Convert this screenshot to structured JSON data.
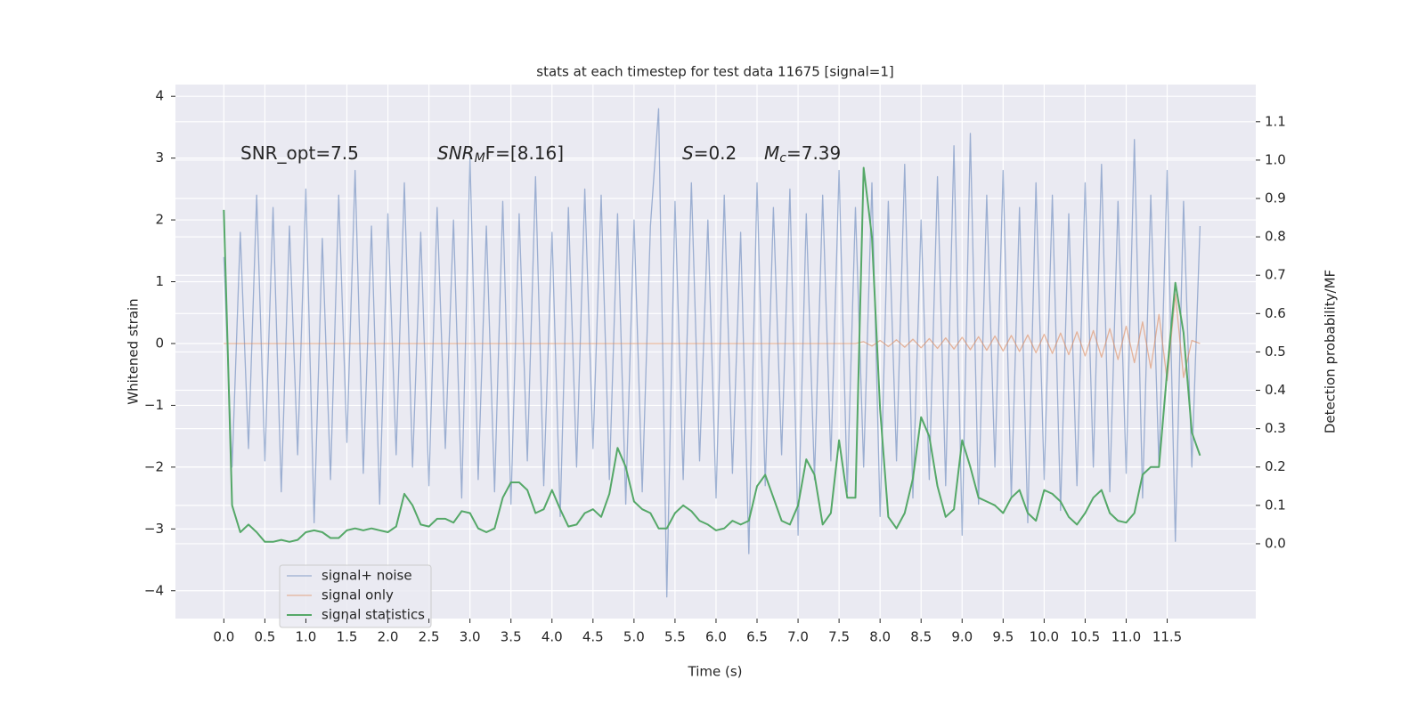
{
  "chart_data": {
    "type": "line",
    "title": "stats at each timestep for test data 11675 [signal=1]",
    "xlabel": "Time (s)",
    "ylabel": "Whitened strain",
    "y2label": "Detection probability/MF",
    "annotations": [
      {
        "text": "SNR_opt=7.5"
      },
      {
        "italic": "SNR",
        "sub": "M",
        "tail": "F=[8.16]"
      },
      {
        "italic": "S",
        "tail": "=0.2"
      },
      {
        "italic": "M",
        "sub": "c",
        "tail": "=7.39"
      }
    ],
    "grid": true,
    "legend": "lower left",
    "xlim": [
      -0.59,
      12.58
    ],
    "ylim": [
      -4.45,
      4.19
    ],
    "y2lim": [
      -0.195,
      1.197
    ],
    "xticks": [
      {
        "value": 0,
        "label": "0.0"
      },
      0.5,
      {
        "value": 1,
        "label": "1.0"
      },
      1.5,
      {
        "value": 2,
        "label": "2.0"
      },
      2.5,
      {
        "value": 3,
        "label": "3.0"
      },
      3.5,
      {
        "value": 4,
        "label": "4.0"
      },
      4.5,
      {
        "value": 5,
        "label": "5.0"
      },
      5.5,
      {
        "value": 6,
        "label": "6.0"
      },
      6.5,
      {
        "value": 7,
        "label": "7.0"
      },
      7.5,
      {
        "value": 8,
        "label": "8.0"
      },
      8.5,
      {
        "value": 9,
        "label": "9.0"
      },
      9.5,
      {
        "value": 10,
        "label": "10.0"
      },
      10.5,
      {
        "value": 11,
        "label": "11.0"
      },
      11.5
    ],
    "yticks": [
      {
        "value": -4,
        "label": "−4"
      },
      {
        "value": -3,
        "label": "−3"
      },
      {
        "value": -2,
        "label": "−2"
      },
      {
        "value": -1,
        "label": "−1"
      },
      0,
      1,
      2,
      3,
      4
    ],
    "y2ticks": [
      {
        "value": 0,
        "label": "0.0"
      },
      0.1,
      0.2,
      0.3,
      0.4,
      0.5,
      0.6,
      0.7,
      0.8,
      0.9,
      {
        "value": 1,
        "label": "1.0"
      },
      1.1
    ],
    "x": [
      0,
      0.1,
      0.2,
      0.3,
      0.4,
      0.5,
      0.6,
      0.7,
      0.8,
      0.9,
      1,
      1.1,
      1.2,
      1.3,
      1.4,
      1.5,
      1.6,
      1.7,
      1.8,
      1.9,
      2,
      2.1,
      2.2,
      2.3,
      2.4,
      2.5,
      2.6,
      2.7,
      2.8,
      2.9,
      3,
      3.1,
      3.2,
      3.3,
      3.4,
      3.5,
      3.6,
      3.7,
      3.8,
      3.9,
      4,
      4.1,
      4.2,
      4.3,
      4.4,
      4.5,
      4.6,
      4.7,
      4.8,
      4.9,
      5,
      5.1,
      5.2,
      5.3,
      5.4,
      5.5,
      5.6,
      5.7,
      5.8,
      5.9,
      6,
      6.1,
      6.2,
      6.3,
      6.4,
      6.5,
      6.6,
      6.7,
      6.8,
      6.9,
      7,
      7.1,
      7.2,
      7.3,
      7.4,
      7.5,
      7.6,
      7.7,
      7.8,
      7.9,
      8,
      8.1,
      8.2,
      8.3,
      8.4,
      8.5,
      8.6,
      8.7,
      8.8,
      8.9,
      9,
      9.1,
      9.2,
      9.3,
      9.4,
      9.5,
      9.6,
      9.7,
      9.8,
      9.9,
      10,
      10.1,
      10.2,
      10.3,
      10.4,
      10.5,
      10.6,
      10.7,
      10.8,
      10.9,
      11,
      11.1,
      11.2,
      11.3,
      11.4,
      11.5,
      11.6,
      11.7,
      11.8,
      11.9
    ],
    "series": [
      {
        "name": "signal+ noise",
        "color": "#4c72b0",
        "values": [
          1.4,
          -2.0,
          1.8,
          -1.7,
          2.4,
          -1.9,
          2.2,
          -2.4,
          1.9,
          -1.8,
          2.5,
          -2.9,
          1.7,
          -2.2,
          2.4,
          -1.6,
          2.8,
          -2.1,
          1.9,
          -2.6,
          2.1,
          -1.8,
          2.6,
          -2.0,
          1.8,
          -2.3,
          2.2,
          -1.7,
          2.0,
          -2.5,
          3.0,
          -2.2,
          1.9,
          -2.4,
          2.3,
          -2.6,
          2.1,
          -1.9,
          2.7,
          -2.3,
          1.8,
          -2.8,
          2.2,
          -2.0,
          2.5,
          -1.7,
          2.4,
          -2.2,
          2.1,
          -2.6,
          2.0,
          -2.4,
          1.9,
          3.8,
          -4.1,
          2.3,
          -2.2,
          2.6,
          -1.9,
          2.0,
          -2.5,
          2.4,
          -2.1,
          1.8,
          -3.4,
          2.6,
          -2.3,
          2.2,
          -1.8,
          2.5,
          -3.1,
          2.1,
          -2.2,
          2.4,
          -1.9,
          2.8,
          -2.4,
          2.2,
          -2.0,
          2.6,
          -2.8,
          2.3,
          -1.9,
          2.9,
          -2.5,
          2.0,
          -2.2,
          2.7,
          -2.3,
          3.2,
          -3.1,
          3.4,
          -2.6,
          2.4,
          -2.0,
          2.8,
          -2.5,
          2.2,
          -2.9,
          2.6,
          -2.2,
          2.4,
          -2.7,
          2.1,
          -2.3,
          2.6,
          -2.0,
          2.9,
          -2.4,
          2.3,
          -2.1,
          3.3,
          -2.5,
          2.4,
          -2.0,
          2.8,
          -3.2,
          2.3,
          -2.0,
          1.9
        ]
      },
      {
        "name": "signal only",
        "color": "#dd8452",
        "values": [
          0,
          0,
          0,
          0,
          0,
          0,
          0,
          0,
          0,
          0,
          0,
          0,
          0,
          0,
          0,
          0,
          0,
          0,
          0,
          0,
          0,
          0,
          0,
          0,
          0,
          0,
          0,
          0,
          0,
          0,
          0,
          0,
          0,
          0,
          0,
          0,
          0,
          0,
          0,
          0,
          0,
          0,
          0,
          0,
          0,
          0,
          0,
          0,
          0,
          0,
          0,
          0,
          0,
          0,
          0,
          0,
          0,
          0,
          0,
          0,
          0,
          0,
          0,
          0,
          0,
          0,
          0,
          0,
          0,
          0,
          0,
          0,
          0,
          0,
          0,
          0,
          0,
          0,
          0.03,
          -0.04,
          0.05,
          -0.05,
          0.06,
          -0.06,
          0.07,
          -0.07,
          0.08,
          -0.08,
          0.09,
          -0.09,
          0.1,
          -0.1,
          0.11,
          -0.11,
          0.12,
          -0.12,
          0.13,
          -0.13,
          0.14,
          -0.15,
          0.15,
          -0.16,
          0.17,
          -0.18,
          0.19,
          -0.2,
          0.21,
          -0.22,
          0.24,
          -0.26,
          0.28,
          -0.31,
          0.35,
          -0.4,
          0.47,
          -0.6,
          0.8,
          -0.55,
          0.05,
          0
        ]
      },
      {
        "name": "signal statistics",
        "color": "#55a868",
        "axis": "y2",
        "values": [
          0.87,
          0.1,
          0.03,
          0.05,
          0.03,
          0.005,
          0.005,
          0.01,
          0.005,
          0.01,
          0.03,
          0.035,
          0.03,
          0.015,
          0.015,
          0.035,
          0.04,
          0.035,
          0.04,
          0.035,
          0.03,
          0.045,
          0.13,
          0.1,
          0.05,
          0.045,
          0.065,
          0.065,
          0.055,
          0.085,
          0.08,
          0.04,
          0.03,
          0.04,
          0.12,
          0.16,
          0.16,
          0.14,
          0.08,
          0.09,
          0.14,
          0.09,
          0.045,
          0.05,
          0.08,
          0.09,
          0.07,
          0.13,
          0.25,
          0.2,
          0.11,
          0.09,
          0.08,
          0.04,
          0.04,
          0.08,
          0.1,
          0.085,
          0.06,
          0.05,
          0.035,
          0.04,
          0.06,
          0.05,
          0.06,
          0.15,
          0.18,
          0.12,
          0.06,
          0.05,
          0.1,
          0.22,
          0.18,
          0.05,
          0.08,
          0.27,
          0.12,
          0.12,
          0.98,
          0.8,
          0.35,
          0.07,
          0.04,
          0.08,
          0.17,
          0.33,
          0.28,
          0.15,
          0.07,
          0.09,
          0.27,
          0.2,
          0.12,
          0.11,
          0.1,
          0.08,
          0.12,
          0.14,
          0.08,
          0.06,
          0.14,
          0.13,
          0.11,
          0.07,
          0.05,
          0.08,
          0.12,
          0.14,
          0.08,
          0.06,
          0.055,
          0.08,
          0.18,
          0.2,
          0.2,
          0.45,
          0.68,
          0.55,
          0.29,
          0.23
        ]
      }
    ]
  }
}
